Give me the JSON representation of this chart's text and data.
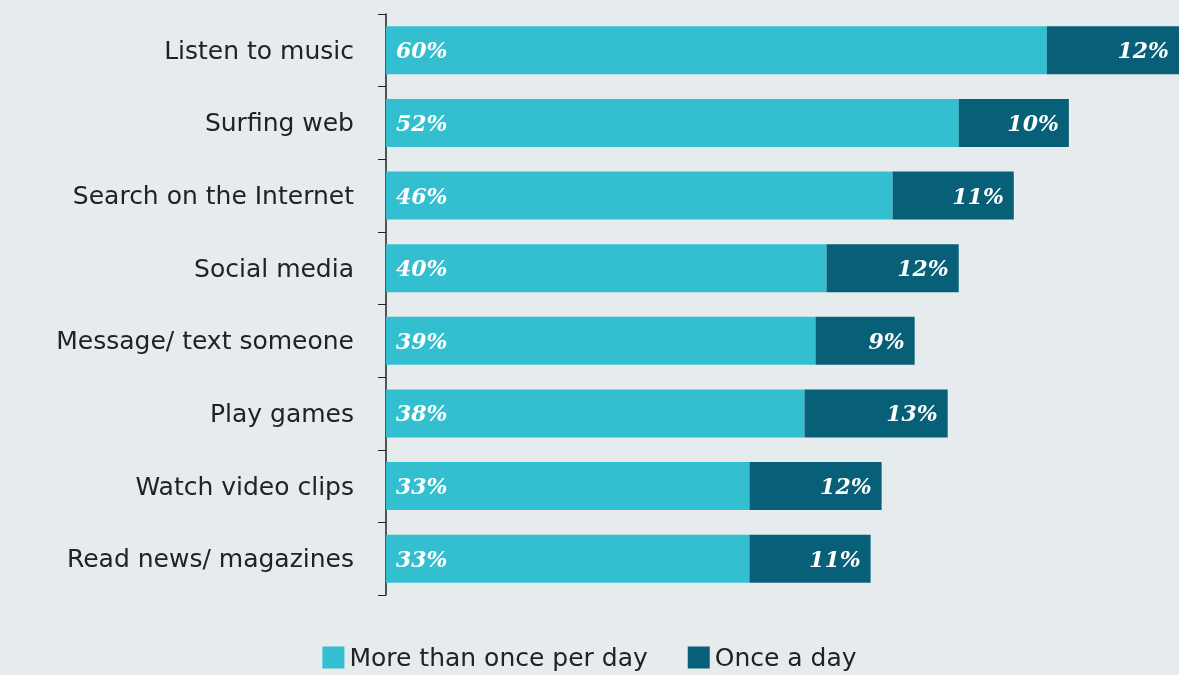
{
  "chart_data": {
    "type": "bar",
    "orientation": "horizontal",
    "stacked": true,
    "legend": "bottom",
    "grid": false,
    "categories": [
      "Listen to music",
      "Surfing web",
      "Search on the Internet",
      "Social media",
      "Message/ text someone",
      "Play games",
      "Watch video clips",
      "Read news/ magazines"
    ],
    "series": [
      {
        "name": "More than once per day",
        "color": "#33bfd0",
        "values": [
          60,
          52,
          46,
          40,
          39,
          38,
          33,
          33
        ],
        "value_labels": [
          "60%",
          "52%",
          "46%",
          "40%",
          "39%",
          "38%",
          "33%",
          "33%"
        ]
      },
      {
        "name": "Once a day",
        "color": "#075f78",
        "values": [
          12,
          10,
          11,
          12,
          9,
          13,
          12,
          11
        ],
        "value_labels": [
          "12%",
          "10%",
          "11%",
          "12%",
          "9%",
          "13%",
          "12%",
          "11%"
        ]
      }
    ]
  }
}
